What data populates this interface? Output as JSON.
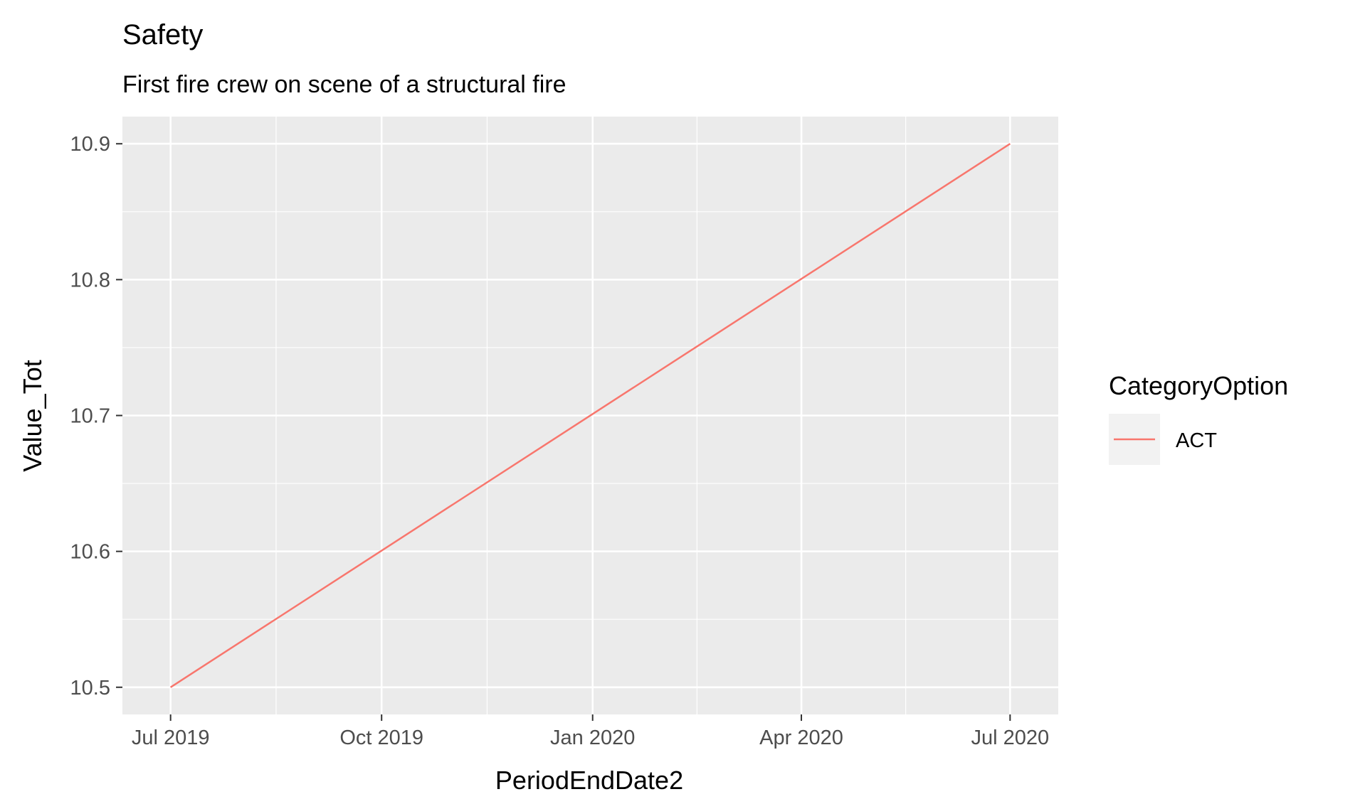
{
  "chart_data": {
    "type": "line",
    "title": "Safety",
    "subtitle": "First fire crew on scene of a structural fire",
    "xlabel": "PeriodEndDate2",
    "ylabel": "Value_Tot",
    "x_ticks": [
      {
        "date": "2019-07-01",
        "label": "Jul 2019"
      },
      {
        "date": "2019-10-01",
        "label": "Oct 2019"
      },
      {
        "date": "2020-01-01",
        "label": "Jan 2020"
      },
      {
        "date": "2020-04-01",
        "label": "Apr 2020"
      },
      {
        "date": "2020-07-01",
        "label": "Jul 2020"
      }
    ],
    "y_ticks": [
      10.5,
      10.6,
      10.7,
      10.8,
      10.9
    ],
    "xlim": [
      "2019-06-10",
      "2020-07-22"
    ],
    "ylim": [
      10.48,
      10.92
    ],
    "grid": true,
    "legend": {
      "title": "CategoryOption",
      "position": "right"
    },
    "series": [
      {
        "name": "ACT",
        "color": "#F8766D",
        "points": [
          {
            "x": "2019-07-01",
            "y": 10.5
          },
          {
            "x": "2020-07-01",
            "y": 10.9
          }
        ]
      }
    ]
  }
}
